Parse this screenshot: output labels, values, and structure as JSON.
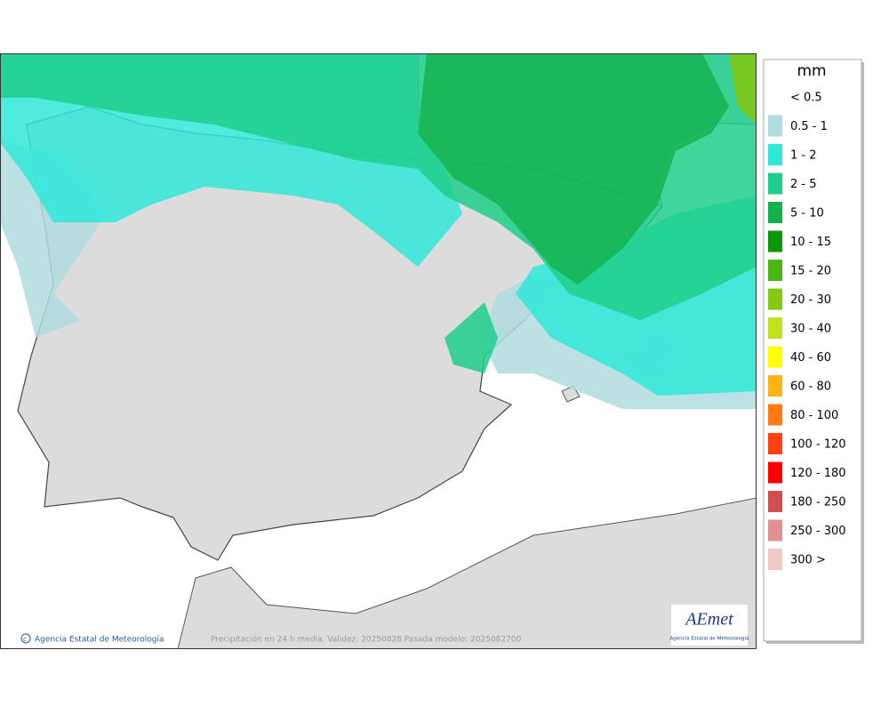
{
  "legend": {
    "title": "mm",
    "items": [
      {
        "label": "< 0.5"
      },
      {
        "label": "0.5 - 1",
        "color": "#b0dce0"
      },
      {
        "label": "1 - 2",
        "color": "#2fe8d8"
      },
      {
        "label": "2 - 5",
        "color": "#1ecf8a"
      },
      {
        "label": "5 - 10",
        "color": "#14b04c"
      },
      {
        "label": "10 - 15",
        "color": "#0a980a"
      },
      {
        "label": "15 - 20",
        "color": "#4cb414"
      },
      {
        "label": "20 - 30",
        "color": "#84c810"
      },
      {
        "label": "30 - 40",
        "color": "#c2e020"
      },
      {
        "label": "40 - 60",
        "color": "#ffff00"
      },
      {
        "label": "60 - 80",
        "color": "#ffb414"
      },
      {
        "label": "80 - 100",
        "color": "#ff7a10"
      },
      {
        "label": "100 - 120",
        "color": "#ff4010"
      },
      {
        "label": "120 - 180",
        "color": "#ff0000"
      },
      {
        "label": "180 - 250",
        "color": "#d05050"
      },
      {
        "label": "250 - 300",
        "color": "#e09090"
      },
      {
        "label": "300 >",
        "color": "#f0c8c8"
      }
    ]
  },
  "footer": {
    "credit": "Agencia Estatal de Meteorología",
    "caption": "Precipitación en 24 h media. Validez: 20250828 Pasada modelo: 2025082700"
  },
  "logo": {
    "name": "AEmet",
    "subtitle": "Agencia Estatal de Meteorología"
  }
}
